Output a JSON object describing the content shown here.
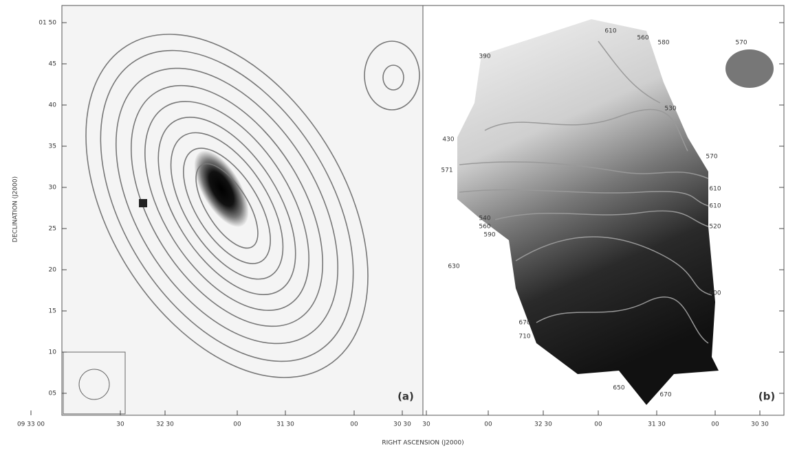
{
  "figure": {
    "y_axis_title": "DECLINATION (J2000)",
    "x_axis_title": "RIGHT ASCENSION (J2000)",
    "panels": [
      {
        "label": "(a)",
        "yticks": [
          "01 50",
          "45",
          "40",
          "35",
          "30",
          "25",
          "20",
          "15",
          "10",
          "05"
        ],
        "xticks": [
          "09 33 00",
          "30",
          "32 30",
          "00",
          "31 30",
          "00",
          "30 30"
        ]
      },
      {
        "label": "(b)",
        "xticks": [
          "30",
          "00",
          "32 30",
          "00",
          "31 30",
          "00",
          "30 30"
        ],
        "contour_labels": [
          "610",
          "560",
          "580",
          "570",
          "390",
          "530",
          "430",
          "570",
          "571",
          "610",
          "610",
          "520",
          "540",
          "560",
          "590",
          "630",
          "600",
          "670",
          "710",
          "650",
          "670"
        ]
      }
    ]
  }
}
